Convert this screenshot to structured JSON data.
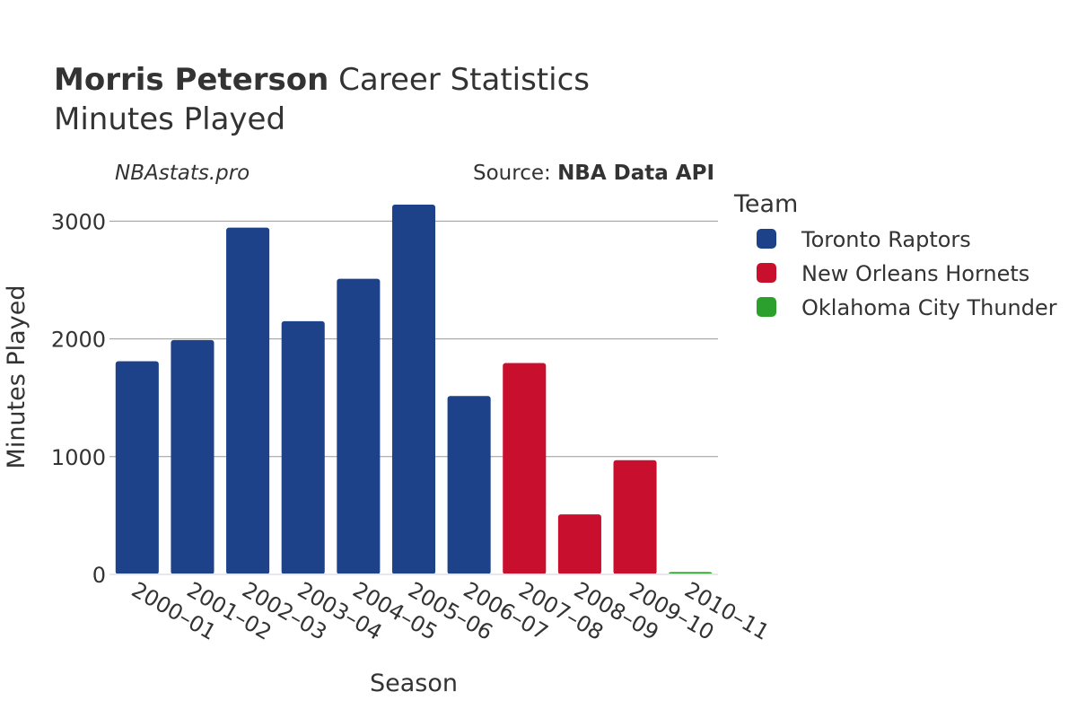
{
  "header": {
    "title_bold": "Morris Peterson",
    "title_rest": " Career Statistics",
    "subtitle": "Minutes Played"
  },
  "credits": {
    "site": "NBAstats.pro",
    "source_prefix": "Source: ",
    "source_name": "NBA Data API"
  },
  "legend": {
    "title": "Team",
    "items": [
      {
        "label": "Toronto Raptors",
        "color": "#1d428a"
      },
      {
        "label": "New Orleans Hornets",
        "color": "#c8102e"
      },
      {
        "label": "Oklahoma City Thunder",
        "color": "#2ca02c"
      }
    ]
  },
  "chart_data": {
    "type": "bar",
    "xlabel": "Season",
    "ylabel": "Minutes Played",
    "ylim": [
      0,
      3300
    ],
    "yticks": [
      0,
      1000,
      2000,
      3000
    ],
    "grid": true,
    "legend_position": "right",
    "categories": [
      "2000–01",
      "2001–02",
      "2002–03",
      "2003–04",
      "2004–05",
      "2005–06",
      "2006–07",
      "2007–08",
      "2008–09",
      "2009–10",
      "2010–11"
    ],
    "values": [
      1810,
      1990,
      2945,
      2150,
      2510,
      3140,
      1515,
      1795,
      510,
      970,
      20
    ],
    "teams": [
      "Toronto Raptors",
      "Toronto Raptors",
      "Toronto Raptors",
      "Toronto Raptors",
      "Toronto Raptors",
      "Toronto Raptors",
      "Toronto Raptors",
      "New Orleans Hornets",
      "New Orleans Hornets",
      "New Orleans Hornets",
      "Oklahoma City Thunder"
    ]
  }
}
